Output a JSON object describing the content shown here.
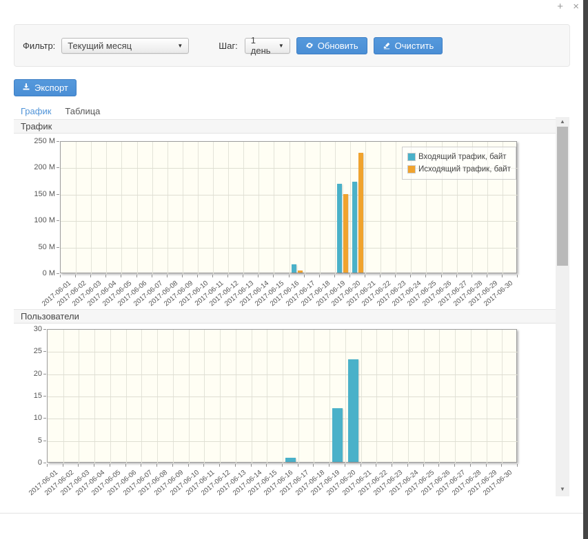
{
  "window": {
    "plus_glyph": "+",
    "close_glyph": "×"
  },
  "filter_panel": {
    "filter_label": "Фильтр:",
    "filter_value": "Текущий месяц",
    "step_label": "Шаг:",
    "step_value": "1 день",
    "refresh_button_label": "Обновить",
    "clear_button_label": "Очистить"
  },
  "toolbar": {
    "export_button_label": "Экспорт"
  },
  "tabs": [
    {
      "label": "График",
      "active": true
    },
    {
      "label": "Таблица",
      "active": false
    }
  ],
  "select_arrow_glyph": "▼",
  "scrollbar": {
    "up_glyph": "▲",
    "down_glyph": "▼"
  },
  "colors": {
    "accent_blue": "#4a90d8",
    "incoming_teal": "#4ab1c9",
    "outgoing_orange": "#f0a32e",
    "plot_background": "#fffef4"
  },
  "chart_data": [
    {
      "type": "bar",
      "title": "Трафик",
      "ylabel": "",
      "xlabel": "",
      "ylim": [
        0,
        250
      ],
      "ystep": 50,
      "y_suffix": " M",
      "grid": true,
      "legend": true,
      "legend_position": "top-right",
      "categories": [
        "2017-06-01",
        "2017-06-02",
        "2017-06-03",
        "2017-06-04",
        "2017-06-05",
        "2017-06-06",
        "2017-06-07",
        "2017-06-08",
        "2017-06-09",
        "2017-06-10",
        "2017-06-11",
        "2017-06-12",
        "2017-06-13",
        "2017-06-14",
        "2017-06-15",
        "2017-06-16",
        "2017-06-17",
        "2017-06-18",
        "2017-06-19",
        "2017-06-20",
        "2017-06-21",
        "2017-06-22",
        "2017-06-23",
        "2017-06-24",
        "2017-06-25",
        "2017-06-26",
        "2017-06-27",
        "2017-06-28",
        "2017-06-29",
        "2017-06-30"
      ],
      "series": [
        {
          "name": "Входящий трафик, байт",
          "color": "#4ab1c9",
          "values": [
            0,
            0,
            0,
            0,
            0,
            0,
            0,
            0,
            0,
            0,
            0,
            0,
            0,
            0,
            0,
            15,
            0,
            0,
            168,
            172,
            0,
            0,
            0,
            0,
            0,
            0,
            0,
            0,
            0,
            0
          ]
        },
        {
          "name": "Исходящий трафик, байт",
          "color": "#f0a32e",
          "values": [
            0,
            0,
            0,
            0,
            0,
            0,
            0,
            0,
            0,
            0,
            0,
            0,
            0,
            0,
            0,
            4,
            0,
            0,
            148,
            226,
            0,
            0,
            0,
            0,
            0,
            0,
            0,
            0,
            0,
            0
          ]
        }
      ]
    },
    {
      "type": "bar",
      "title": "Пользователи",
      "ylabel": "",
      "xlabel": "",
      "ylim": [
        0,
        30
      ],
      "ystep": 5,
      "y_suffix": "",
      "grid": true,
      "legend": false,
      "categories": [
        "2017-06-01",
        "2017-06-02",
        "2017-06-03",
        "2017-06-04",
        "2017-06-05",
        "2017-06-06",
        "2017-06-07",
        "2017-06-08",
        "2017-06-09",
        "2017-06-10",
        "2017-06-11",
        "2017-06-12",
        "2017-06-13",
        "2017-06-14",
        "2017-06-15",
        "2017-06-16",
        "2017-06-17",
        "2017-06-18",
        "2017-06-19",
        "2017-06-20",
        "2017-06-21",
        "2017-06-22",
        "2017-06-23",
        "2017-06-24",
        "2017-06-25",
        "2017-06-26",
        "2017-06-27",
        "2017-06-28",
        "2017-06-29",
        "2017-06-30"
      ],
      "series": [
        {
          "name": "Пользователи",
          "color": "#4ab1c9",
          "values": [
            0,
            0,
            0,
            0,
            0,
            0,
            0,
            0,
            0,
            0,
            0,
            0,
            0,
            0,
            0,
            1,
            0,
            0,
            12,
            23,
            0,
            0,
            0,
            0,
            0,
            0,
            0,
            0,
            0,
            0
          ]
        }
      ]
    }
  ]
}
